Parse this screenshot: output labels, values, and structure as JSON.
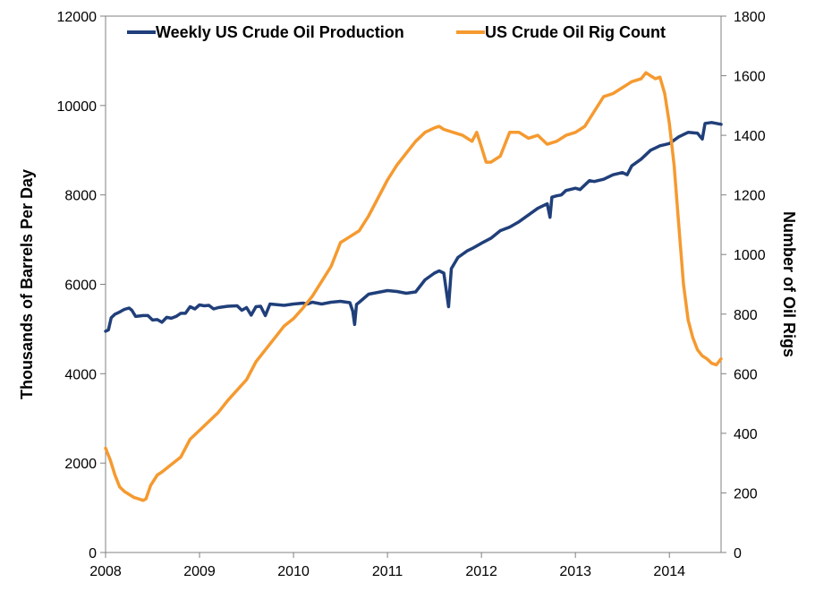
{
  "chart_data": {
    "type": "line",
    "x_axis": {
      "min": 2008,
      "max": 2014.55,
      "ticks": [
        "2008",
        "2009",
        "2010",
        "2011",
        "2012",
        "2013",
        "2014"
      ]
    },
    "y_left": {
      "label": "Thousands of Barrels Per Day",
      "min": 0,
      "max": 12000,
      "ticks": [
        "0",
        "2000",
        "4000",
        "6000",
        "8000",
        "10000",
        "12000"
      ]
    },
    "y_right": {
      "label": "Number of Oil Rigs",
      "min": 0,
      "max": 1800,
      "ticks": [
        "0",
        "200",
        "400",
        "600",
        "800",
        "1000",
        "1200",
        "1400",
        "1600",
        "1800"
      ]
    },
    "grid": false,
    "legend_position": "top",
    "series": [
      {
        "name": "Weekly US Crude Oil Production",
        "axis": "left",
        "color": "#203f7a",
        "points": [
          [
            2008.0,
            4950
          ],
          [
            2008.03,
            4980
          ],
          [
            2008.06,
            5250
          ],
          [
            2008.1,
            5330
          ],
          [
            2008.15,
            5380
          ],
          [
            2008.2,
            5440
          ],
          [
            2008.25,
            5470
          ],
          [
            2008.28,
            5420
          ],
          [
            2008.32,
            5280
          ],
          [
            2008.4,
            5300
          ],
          [
            2008.45,
            5300
          ],
          [
            2008.5,
            5200
          ],
          [
            2008.55,
            5210
          ],
          [
            2008.6,
            5150
          ],
          [
            2008.65,
            5260
          ],
          [
            2008.7,
            5240
          ],
          [
            2008.75,
            5280
          ],
          [
            2008.8,
            5350
          ],
          [
            2008.85,
            5350
          ],
          [
            2008.9,
            5500
          ],
          [
            2008.95,
            5450
          ],
          [
            2009.0,
            5540
          ],
          [
            2009.05,
            5520
          ],
          [
            2009.1,
            5530
          ],
          [
            2009.15,
            5450
          ],
          [
            2009.2,
            5480
          ],
          [
            2009.3,
            5510
          ],
          [
            2009.4,
            5520
          ],
          [
            2009.45,
            5420
          ],
          [
            2009.5,
            5480
          ],
          [
            2009.55,
            5310
          ],
          [
            2009.6,
            5500
          ],
          [
            2009.65,
            5510
          ],
          [
            2009.7,
            5300
          ],
          [
            2009.75,
            5560
          ],
          [
            2009.8,
            5550
          ],
          [
            2009.9,
            5530
          ],
          [
            2010.0,
            5560
          ],
          [
            2010.1,
            5580
          ],
          [
            2010.15,
            5560
          ],
          [
            2010.2,
            5600
          ],
          [
            2010.3,
            5560
          ],
          [
            2010.4,
            5600
          ],
          [
            2010.5,
            5620
          ],
          [
            2010.6,
            5590
          ],
          [
            2010.63,
            5400
          ],
          [
            2010.65,
            5100
          ],
          [
            2010.67,
            5550
          ],
          [
            2010.7,
            5600
          ],
          [
            2010.8,
            5780
          ],
          [
            2010.9,
            5820
          ],
          [
            2011.0,
            5860
          ],
          [
            2011.1,
            5840
          ],
          [
            2011.2,
            5800
          ],
          [
            2011.3,
            5830
          ],
          [
            2011.4,
            6100
          ],
          [
            2011.5,
            6250
          ],
          [
            2011.55,
            6300
          ],
          [
            2011.6,
            6250
          ],
          [
            2011.63,
            5800
          ],
          [
            2011.65,
            5500
          ],
          [
            2011.68,
            6350
          ],
          [
            2011.75,
            6600
          ],
          [
            2011.85,
            6750
          ],
          [
            2011.9,
            6800
          ],
          [
            2012.0,
            6920
          ],
          [
            2012.1,
            7030
          ],
          [
            2012.2,
            7200
          ],
          [
            2012.3,
            7280
          ],
          [
            2012.4,
            7400
          ],
          [
            2012.5,
            7550
          ],
          [
            2012.6,
            7700
          ],
          [
            2012.7,
            7800
          ],
          [
            2012.73,
            7500
          ],
          [
            2012.75,
            7950
          ],
          [
            2012.8,
            7980
          ],
          [
            2012.85,
            8000
          ],
          [
            2012.9,
            8100
          ],
          [
            2013.0,
            8150
          ],
          [
            2013.05,
            8120
          ],
          [
            2013.15,
            8320
          ],
          [
            2013.2,
            8300
          ],
          [
            2013.3,
            8350
          ],
          [
            2013.4,
            8450
          ],
          [
            2013.5,
            8500
          ],
          [
            2013.55,
            8450
          ],
          [
            2013.6,
            8650
          ],
          [
            2013.7,
            8800
          ],
          [
            2013.8,
            9000
          ],
          [
            2013.9,
            9100
          ],
          [
            2014.0,
            9150
          ],
          [
            2014.1,
            9300
          ],
          [
            2014.2,
            9400
          ],
          [
            2014.3,
            9380
          ],
          [
            2014.35,
            9250
          ],
          [
            2014.38,
            9600
          ],
          [
            2014.45,
            9620
          ],
          [
            2014.5,
            9600
          ],
          [
            2014.55,
            9580
          ]
        ]
      },
      {
        "name": "US Crude Oil Rig Count",
        "axis": "right",
        "color": "#f59a30",
        "points": [
          [
            2008.0,
            350
          ],
          [
            2008.05,
            310
          ],
          [
            2008.1,
            260
          ],
          [
            2008.15,
            220
          ],
          [
            2008.2,
            205
          ],
          [
            2008.25,
            195
          ],
          [
            2008.3,
            185
          ],
          [
            2008.35,
            180
          ],
          [
            2008.4,
            175
          ],
          [
            2008.43,
            180
          ],
          [
            2008.48,
            225
          ],
          [
            2008.55,
            260
          ],
          [
            2008.6,
            270
          ],
          [
            2008.7,
            295
          ],
          [
            2008.8,
            320
          ],
          [
            2008.9,
            380
          ],
          [
            2009.0,
            410
          ],
          [
            2009.1,
            440
          ],
          [
            2009.2,
            470
          ],
          [
            2009.3,
            510
          ],
          [
            2009.4,
            545
          ],
          [
            2009.5,
            580
          ],
          [
            2009.6,
            640
          ],
          [
            2009.7,
            680
          ],
          [
            2009.8,
            720
          ],
          [
            2009.9,
            760
          ],
          [
            2010.0,
            785
          ],
          [
            2010.1,
            820
          ],
          [
            2010.2,
            860
          ],
          [
            2010.3,
            910
          ],
          [
            2010.4,
            960
          ],
          [
            2010.5,
            1040
          ],
          [
            2010.6,
            1060
          ],
          [
            2010.7,
            1080
          ],
          [
            2010.8,
            1130
          ],
          [
            2010.9,
            1190
          ],
          [
            2011.0,
            1250
          ],
          [
            2011.1,
            1300
          ],
          [
            2011.2,
            1340
          ],
          [
            2011.3,
            1380
          ],
          [
            2011.4,
            1410
          ],
          [
            2011.5,
            1425
          ],
          [
            2011.55,
            1430
          ],
          [
            2011.6,
            1420
          ],
          [
            2011.7,
            1410
          ],
          [
            2011.8,
            1400
          ],
          [
            2011.9,
            1380
          ],
          [
            2011.95,
            1410
          ],
          [
            2012.0,
            1360
          ],
          [
            2012.05,
            1310
          ],
          [
            2012.1,
            1310
          ],
          [
            2012.2,
            1330
          ],
          [
            2012.3,
            1410
          ],
          [
            2012.4,
            1410
          ],
          [
            2012.5,
            1390
          ],
          [
            2012.6,
            1400
          ],
          [
            2012.7,
            1370
          ],
          [
            2012.8,
            1380
          ],
          [
            2012.9,
            1400
          ],
          [
            2013.0,
            1410
          ],
          [
            2013.1,
            1430
          ],
          [
            2013.2,
            1480
          ],
          [
            2013.3,
            1530
          ],
          [
            2013.4,
            1540
          ],
          [
            2013.5,
            1560
          ],
          [
            2013.6,
            1580
          ],
          [
            2013.7,
            1590
          ],
          [
            2013.75,
            1610
          ],
          [
            2013.8,
            1600
          ],
          [
            2013.85,
            1590
          ],
          [
            2013.9,
            1595
          ],
          [
            2013.95,
            1540
          ],
          [
            2014.0,
            1440
          ],
          [
            2014.05,
            1300
          ],
          [
            2014.1,
            1100
          ],
          [
            2014.15,
            900
          ],
          [
            2014.2,
            780
          ],
          [
            2014.25,
            720
          ],
          [
            2014.3,
            680
          ],
          [
            2014.35,
            660
          ],
          [
            2014.4,
            650
          ],
          [
            2014.45,
            635
          ],
          [
            2014.5,
            630
          ],
          [
            2014.55,
            650
          ]
        ]
      }
    ]
  }
}
